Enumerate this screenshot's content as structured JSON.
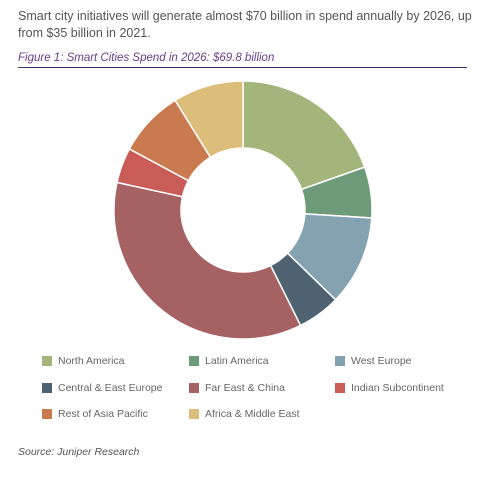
{
  "intro_text": "Smart city initiatives will generate almost $70 billion in spend annually by 2026, up from $35 billion in 2021.",
  "figure_title": "Figure 1: Smart Cities Spend in 2026: $69.8 billion",
  "source": "Source: Juniper Research",
  "chart_data": {
    "type": "pie",
    "style": "donut",
    "title": "Figure 1: Smart Cities Spend in 2026: $69.8 billion",
    "unit": "share of spend",
    "total_label": "$69.8 billion",
    "legend_position": "bottom",
    "start_angle_deg": 0,
    "direction": "clockwise",
    "series": [
      {
        "name": "North America",
        "value": 20.0,
        "color": "#a3b57a"
      },
      {
        "name": "Latin America",
        "value": 6.5,
        "color": "#6d9a78"
      },
      {
        "name": "West Europe",
        "value": 11.5,
        "color": "#85a2b1"
      },
      {
        "name": "Central & East Europe",
        "value": 5.5,
        "color": "#4e6272"
      },
      {
        "name": "Far East & China",
        "value": 36.5,
        "color": "#a66263"
      },
      {
        "name": "Indian Subcontinent",
        "value": 4.5,
        "color": "#c95c56"
      },
      {
        "name": "Rest of Asia Pacific",
        "value": 8.5,
        "color": "#c97a4e"
      },
      {
        "name": "Africa & Middle East",
        "value": 9.0,
        "color": "#dcbe7a"
      }
    ]
  }
}
